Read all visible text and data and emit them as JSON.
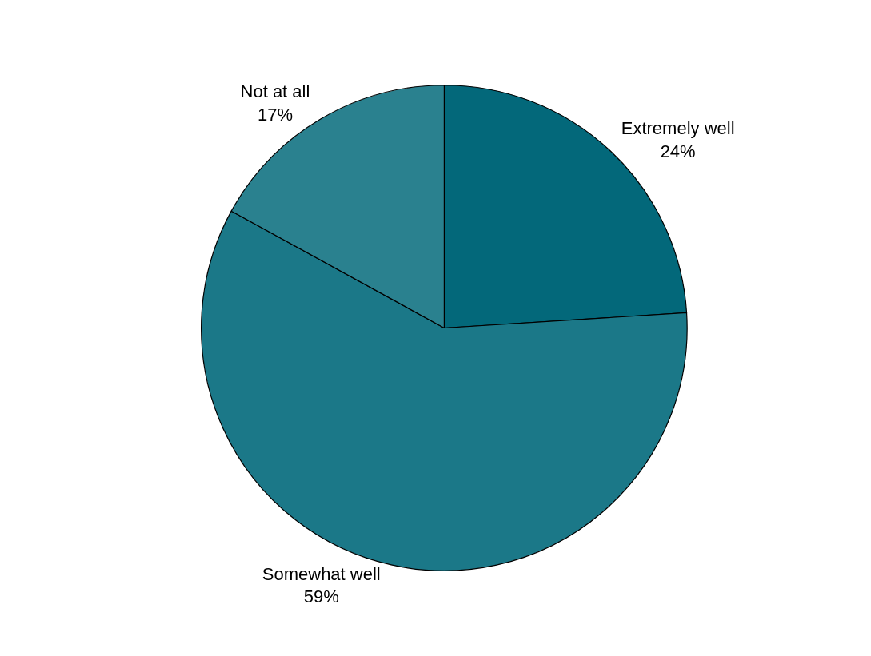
{
  "chart_data": {
    "type": "pie",
    "categories": [
      "Extremely well",
      "Somewhat well",
      "Not at all"
    ],
    "values": [
      24,
      59,
      17
    ],
    "value_labels": [
      "24%",
      "59%",
      "17%"
    ],
    "colors": [
      "#03687a",
      "#1b7888",
      "#2a818f"
    ],
    "legend": false
  }
}
